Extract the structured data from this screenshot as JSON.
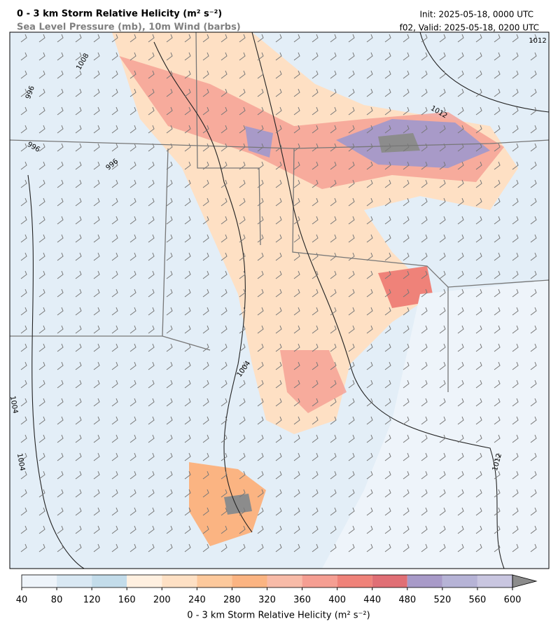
{
  "header": {
    "title": "0 - 3 km Storm Relative Helicity (m² s⁻²)",
    "subtitle": "Sea Level Pressure (mb), 10m Wind (barbs)",
    "init": "Init: 2025-05-18, 0000 UTC",
    "valid": "f02, Valid: 2025-05-18, 0200 UTC"
  },
  "colorbar": {
    "label": "0 - 3 km Storm Relative Helicity (m² s⁻²)",
    "ticks": [
      40,
      80,
      120,
      160,
      200,
      240,
      280,
      320,
      360,
      400,
      440,
      480,
      520,
      560,
      600
    ],
    "colors": [
      "#eef4fa",
      "#d9e8f3",
      "#c3dcea",
      "#fff0e0",
      "#fee0c4",
      "#fdc99c",
      "#fbb482",
      "#f8bba8",
      "#f59e92",
      "#ef8279",
      "#e06f75",
      "#a89ac8",
      "#b6b3d6",
      "#c9c6e0"
    ],
    "extend_color": "#8c8c8c"
  },
  "contour_labels": [
    "1012",
    "1012",
    "1012",
    "996",
    "996",
    "996",
    "1008",
    "1004",
    "1004",
    "1004"
  ]
}
